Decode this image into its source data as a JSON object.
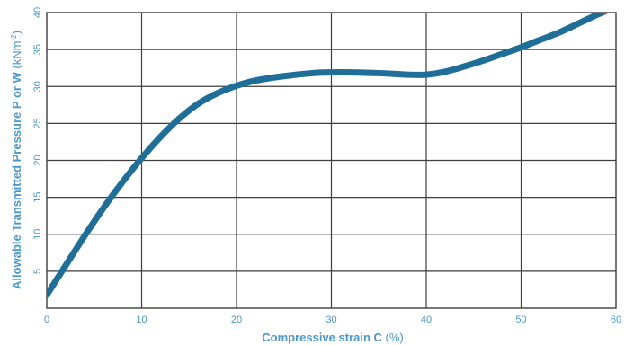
{
  "chart_data": {
    "type": "line",
    "title": "",
    "xlabel": {
      "main": "Compressive strain C",
      "unit": "(%)"
    },
    "ylabel": {
      "main": "Allowable Transmitted Pressure P or W",
      "unit": "(kNm",
      "unit_sup": "-2",
      "unit_close": ")"
    },
    "xlim": [
      0,
      60
    ],
    "ylim": [
      0,
      40
    ],
    "x_ticks": [
      "0",
      "10",
      "20",
      "30",
      "40",
      "50",
      "60"
    ],
    "y_ticks": [
      "5",
      "10",
      "15",
      "20",
      "25",
      "30",
      "35",
      "40"
    ],
    "grid": true,
    "colors": {
      "line": "#1f6e98",
      "grid": "#3d3d3d",
      "axis_text": "#4b97c8"
    },
    "series": [
      {
        "x": [
          0,
          2,
          4,
          6,
          8,
          10,
          12,
          14,
          16,
          18,
          20,
          22,
          25,
          28,
          30,
          32,
          35,
          38,
          40,
          42,
          44,
          46,
          48,
          50,
          52,
          54,
          56,
          58,
          60
        ],
        "y": [
          1.8,
          5.8,
          9.8,
          13.6,
          17.1,
          20.3,
          23.2,
          25.7,
          27.7,
          29.1,
          30.1,
          30.8,
          31.4,
          31.8,
          31.9,
          31.9,
          31.8,
          31.6,
          31.6,
          32.0,
          32.7,
          33.5,
          34.4,
          35.3,
          36.3,
          37.3,
          38.5,
          39.7,
          40.8
        ]
      }
    ]
  }
}
